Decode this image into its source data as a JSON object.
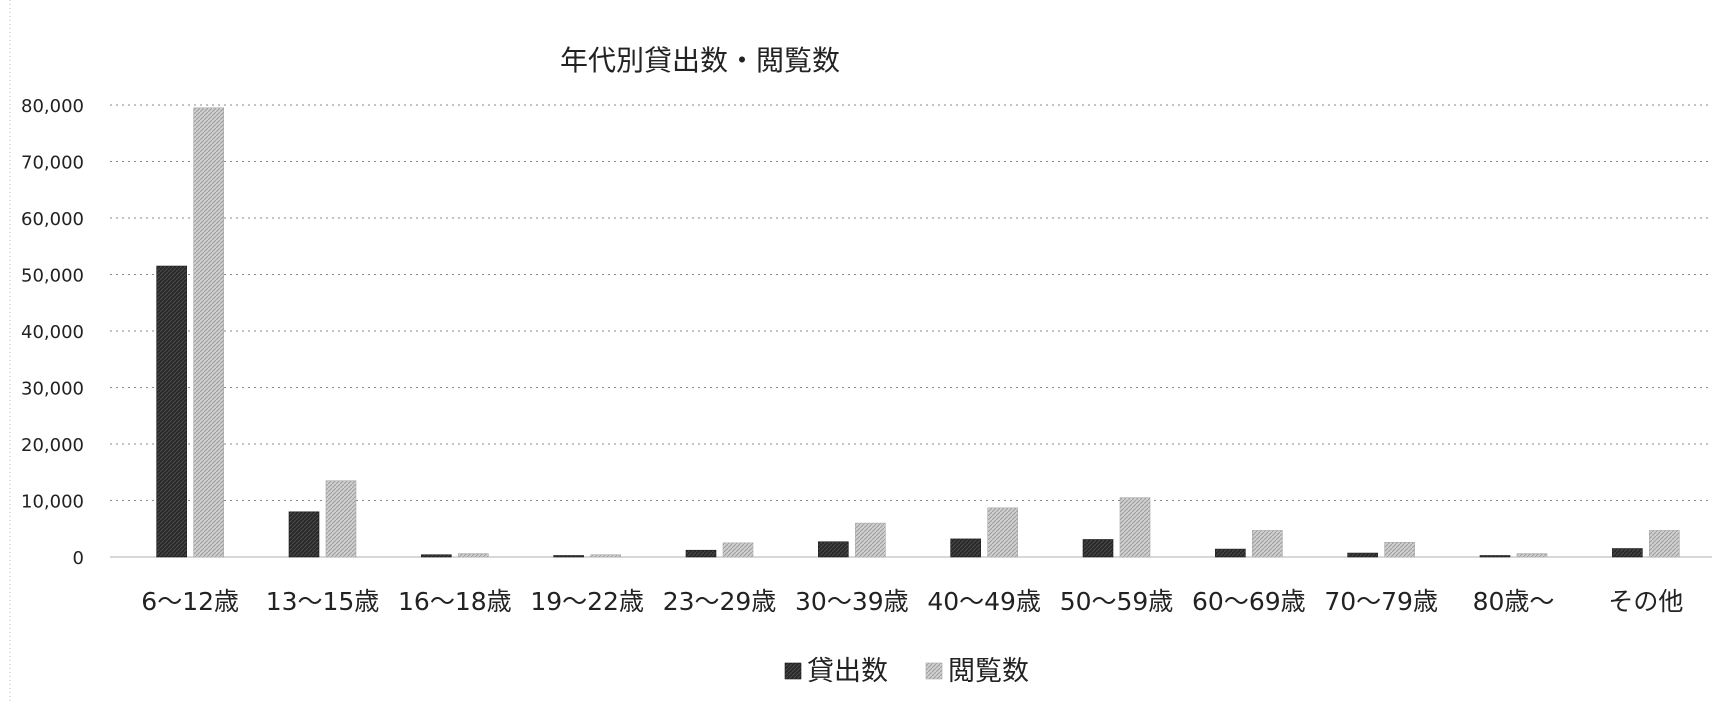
{
  "chart_data": {
    "type": "bar",
    "title": "年代別貸出数・閲覧数",
    "categories": [
      "6〜12歳",
      "13〜15歳",
      "16〜18歳",
      "19〜22歳",
      "23〜29歳",
      "30〜39歳",
      "40〜49歳",
      "50〜59歳",
      "60〜69歳",
      "70〜79歳",
      "80歳〜",
      "その他"
    ],
    "series": [
      {
        "name": "貸出数",
        "color": "#2b2b2b",
        "values": [
          51500,
          8000,
          400,
          200,
          1200,
          2700,
          3200,
          3100,
          1400,
          700,
          100,
          1500
        ]
      },
      {
        "name": "閲覧数",
        "color": "#c4c4c4",
        "values": [
          79500,
          13500,
          600,
          400,
          2500,
          6000,
          8700,
          10500,
          4700,
          2600,
          600,
          4700
        ]
      }
    ],
    "ylim": [
      0,
      80000
    ],
    "yticks": [
      0,
      10000,
      20000,
      30000,
      40000,
      50000,
      60000,
      70000,
      80000
    ],
    "ytick_labels": [
      "0",
      "10,000",
      "20,000",
      "30,000",
      "40,000",
      "50,000",
      "60,000",
      "70,000",
      "80,000"
    ],
    "grid": true,
    "legend": "bottom"
  }
}
